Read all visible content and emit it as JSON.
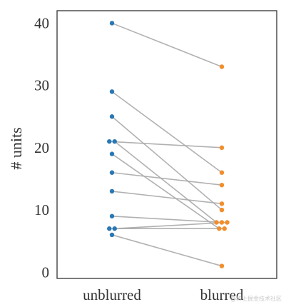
{
  "chart_data": {
    "type": "scatter",
    "subtype": "paired-dot-slope",
    "title": "",
    "xlabel": "",
    "ylabel": "# units",
    "categories": [
      "unblurred",
      "blurred"
    ],
    "ylim": [
      -1,
      42
    ],
    "yticks": [
      0,
      10,
      20,
      30,
      40
    ],
    "grid": false,
    "legend": "none",
    "colors": {
      "unblurred": "#2878b5",
      "blurred": "#f28e2b",
      "line": "#a8a8a8",
      "axis": "#333333"
    },
    "pairs": [
      {
        "unblurred": 40,
        "blurred": 33
      },
      {
        "unblurred": 29,
        "blurred": 16
      },
      {
        "unblurred": 25,
        "blurred": 10
      },
      {
        "unblurred": 21,
        "blurred": 20
      },
      {
        "unblurred": 21,
        "blurred": 8
      },
      {
        "unblurred": 19,
        "blurred": 7
      },
      {
        "unblurred": 16,
        "blurred": 14
      },
      {
        "unblurred": 13,
        "blurred": 11
      },
      {
        "unblurred": 9,
        "blurred": 8
      },
      {
        "unblurred": 7,
        "blurred": 7
      },
      {
        "unblurred": 7,
        "blurred": 8
      },
      {
        "unblurred": 6,
        "blurred": 1
      }
    ]
  },
  "watermark": "@稀土掘金技术社区"
}
